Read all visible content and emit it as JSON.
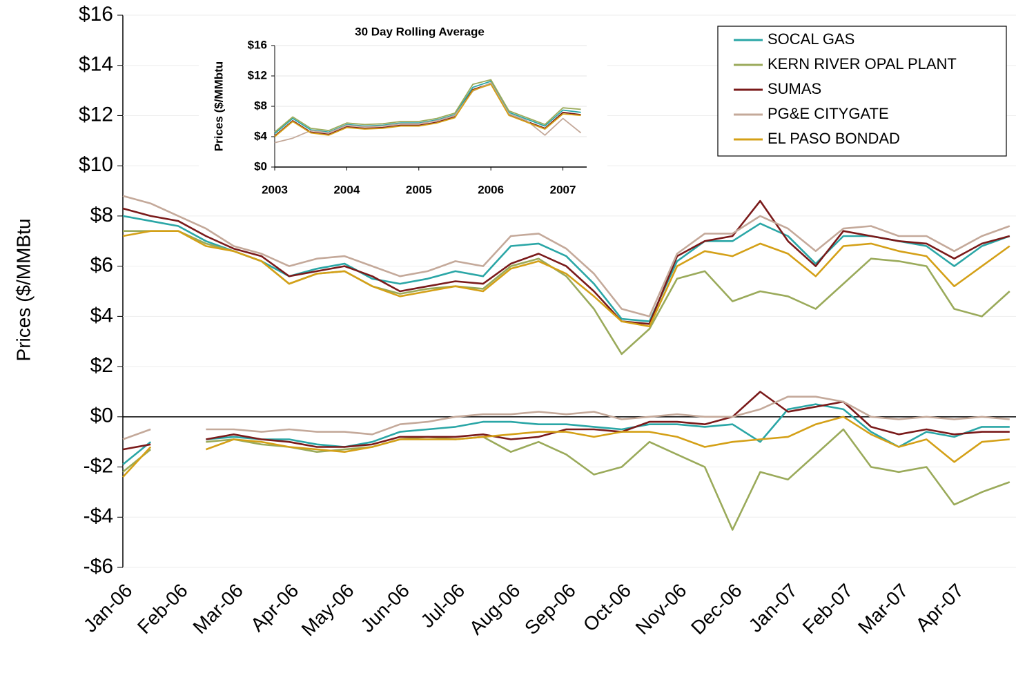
{
  "chart_data": [
    {
      "type": "line",
      "y_label": "Prices ($/MMBtu",
      "categories": [
        "Jan-06",
        null,
        "Feb-06",
        null,
        "Mar-06",
        null,
        "Apr-06",
        null,
        "May-06",
        null,
        "Jun-06",
        null,
        "Jul-06",
        null,
        "Aug-06",
        null,
        "Sep-06",
        null,
        "Oct-06",
        null,
        "Nov-06",
        null,
        "Dec-06",
        null,
        "Jan-07",
        null,
        "Feb-07",
        null,
        "Mar-07",
        null,
        "Apr-07",
        null,
        null
      ],
      "ylim": [
        -6,
        16
      ],
      "yticks": [
        {
          "value": 16,
          "label": "$16"
        },
        {
          "value": 14,
          "label": "$14"
        },
        {
          "value": 12,
          "label": "$12"
        },
        {
          "value": 10,
          "label": "$10"
        },
        {
          "value": 8,
          "label": "$8"
        },
        {
          "value": 6,
          "label": "$6"
        },
        {
          "value": 4,
          "label": "$4"
        },
        {
          "value": 2,
          "label": "$2"
        },
        {
          "value": 0,
          "label": "$0"
        },
        {
          "value": -2,
          "label": "-$2"
        },
        {
          "value": -4,
          "label": "-$4"
        },
        {
          "value": -6,
          "label": "-$6"
        }
      ],
      "grid": true,
      "legend": "upper right",
      "series": [
        {
          "name": "SOCAL GAS",
          "color": "#2aa6a6",
          "values": [
            8.0,
            7.8,
            7.6,
            7.0,
            6.6,
            6.2,
            5.6,
            5.9,
            6.1,
            5.5,
            5.3,
            5.5,
            5.8,
            5.6,
            6.8,
            6.9,
            6.4,
            5.3,
            3.9,
            3.8,
            6.2,
            7.0,
            7.0,
            7.7,
            7.2,
            6.1,
            7.2,
            7.2,
            7.0,
            6.8,
            6.0,
            6.8,
            7.2
          ],
          "basis": [
            -1.9,
            -1.0,
            null,
            -0.9,
            -0.8,
            -0.9,
            -0.9,
            -1.1,
            -1.2,
            -1.0,
            -0.6,
            -0.5,
            -0.4,
            -0.2,
            -0.2,
            -0.3,
            -0.3,
            -0.4,
            -0.5,
            -0.3,
            -0.3,
            -0.4,
            -0.3,
            -1.0,
            0.3,
            0.5,
            0.3,
            -0.6,
            -1.2,
            -0.6,
            -0.8,
            -0.4,
            -0.4
          ]
        },
        {
          "name": "KERN RIVER OPAL PLANT",
          "color": "#9aaa5a",
          "values": [
            7.4,
            7.4,
            7.4,
            6.9,
            6.6,
            6.2,
            5.3,
            5.7,
            5.8,
            5.2,
            4.9,
            5.1,
            5.2,
            5.1,
            6.0,
            6.3,
            5.6,
            4.3,
            2.5,
            3.5,
            5.5,
            5.8,
            4.6,
            5.0,
            4.8,
            4.3,
            5.3,
            6.3,
            6.2,
            6.0,
            4.3,
            4.0,
            5.0
          ],
          "basis": [
            -2.2,
            -1.3,
            null,
            -1.0,
            -0.9,
            -1.1,
            -1.2,
            -1.4,
            -1.3,
            -1.2,
            -0.9,
            -0.8,
            -0.9,
            -0.8,
            -1.4,
            -1.0,
            -1.5,
            -2.3,
            -2.0,
            -1.0,
            -1.5,
            -2.0,
            -4.5,
            -2.2,
            -2.5,
            -1.5,
            -0.5,
            -2.0,
            -2.2,
            -2.0,
            -3.5,
            -3.0,
            -2.6
          ]
        },
        {
          "name": "SUMAS",
          "color": "#7a1a1a",
          "values": [
            8.3,
            8.0,
            7.8,
            7.2,
            6.7,
            6.4,
            5.6,
            5.8,
            6.0,
            5.6,
            5.0,
            5.2,
            5.4,
            5.3,
            6.1,
            6.5,
            6.0,
            5.0,
            3.8,
            3.7,
            6.4,
            7.0,
            7.2,
            8.6,
            7.0,
            6.0,
            7.4,
            7.2,
            7.0,
            6.9,
            6.3,
            6.9,
            7.2
          ],
          "basis": [
            -1.3,
            -1.1,
            null,
            -0.9,
            -0.7,
            -0.9,
            -1.0,
            -1.2,
            -1.2,
            -1.1,
            -0.8,
            -0.8,
            -0.8,
            -0.7,
            -0.9,
            -0.8,
            -0.5,
            -0.5,
            -0.6,
            -0.2,
            -0.2,
            -0.3,
            0.0,
            1.0,
            0.2,
            0.4,
            0.6,
            -0.4,
            -0.7,
            -0.5,
            -0.7,
            -0.6,
            -0.6
          ]
        },
        {
          "name": "PG&E CITYGATE",
          "color": "#c4a99a",
          "values": [
            8.8,
            8.5,
            8.0,
            7.5,
            6.8,
            6.5,
            6.0,
            6.3,
            6.4,
            6.0,
            5.6,
            5.8,
            6.2,
            6.0,
            7.2,
            7.3,
            6.7,
            5.7,
            4.3,
            4.0,
            6.5,
            7.3,
            7.3,
            8.0,
            7.5,
            6.6,
            7.5,
            7.6,
            7.2,
            7.2,
            6.6,
            7.2,
            7.6
          ],
          "basis": [
            -0.9,
            -0.5,
            null,
            -0.5,
            -0.5,
            -0.6,
            -0.5,
            -0.6,
            -0.6,
            -0.7,
            -0.3,
            -0.2,
            0.0,
            0.1,
            0.1,
            0.2,
            0.1,
            0.2,
            -0.1,
            0.0,
            0.1,
            0.0,
            0.0,
            0.3,
            0.8,
            0.8,
            0.6,
            0.0,
            -0.1,
            0.0,
            -0.1,
            0.0,
            -0.1
          ]
        },
        {
          "name": "EL PASO BONDAD",
          "color": "#d4a017",
          "values": [
            7.2,
            7.4,
            7.4,
            6.8,
            6.6,
            6.2,
            5.3,
            5.7,
            5.8,
            5.2,
            4.8,
            5.0,
            5.2,
            5.0,
            5.9,
            6.2,
            5.7,
            4.8,
            3.8,
            3.6,
            6.0,
            6.6,
            6.4,
            6.9,
            6.5,
            5.6,
            6.8,
            6.9,
            6.6,
            6.4,
            5.2,
            6.0,
            6.8
          ],
          "basis": [
            -2.4,
            -1.2,
            null,
            -1.3,
            -0.9,
            -1.0,
            -1.2,
            -1.3,
            -1.4,
            -1.2,
            -0.9,
            -0.9,
            -0.9,
            -0.8,
            -0.7,
            -0.6,
            -0.6,
            -0.8,
            -0.6,
            -0.6,
            -0.8,
            -1.2,
            -1.0,
            -0.9,
            -0.8,
            -0.3,
            0.0,
            -0.7,
            -1.2,
            -0.9,
            -1.8,
            -1.0,
            -0.9
          ]
        }
      ]
    },
    {
      "type": "line",
      "title": "30 Day Rolling Average",
      "y_label": "Prices ($/MMbtu",
      "x": [
        2003.0,
        2003.25,
        2003.5,
        2003.75,
        2004.0,
        2004.25,
        2004.5,
        2004.75,
        2005.0,
        2005.25,
        2005.5,
        2005.75,
        2006.0,
        2006.25,
        2006.5,
        2006.75,
        2007.0,
        2007.25
      ],
      "xlim": [
        2003,
        2007.33
      ],
      "xticks": [
        2003,
        2004,
        2005,
        2006,
        2007
      ],
      "ylim": [
        0,
        16
      ],
      "yticks": [
        {
          "value": 16,
          "label": "$16"
        },
        {
          "value": 12,
          "label": "$12"
        },
        {
          "value": 8,
          "label": "$8"
        },
        {
          "value": 4,
          "label": "$4"
        },
        {
          "value": 0,
          "label": "$0"
        }
      ],
      "grid": true,
      "series": [
        {
          "color": "#2aa6a6",
          "values": [
            4.4,
            6.4,
            4.9,
            4.6,
            5.6,
            5.4,
            5.5,
            5.8,
            5.8,
            6.2,
            6.9,
            10.5,
            11.3,
            7.2,
            6.3,
            5.4,
            7.5,
            7.2
          ]
        },
        {
          "color": "#9aaa5a",
          "values": [
            4.6,
            6.6,
            5.1,
            4.8,
            5.8,
            5.6,
            5.7,
            6.0,
            6.0,
            6.4,
            7.1,
            10.9,
            11.5,
            7.4,
            6.5,
            5.6,
            7.8,
            7.6
          ]
        },
        {
          "color": "#7a1a1a",
          "values": [
            4.1,
            6.1,
            4.6,
            4.3,
            5.3,
            5.1,
            5.2,
            5.5,
            5.5,
            5.9,
            6.6,
            10.2,
            11.0,
            6.9,
            6.0,
            5.1,
            7.2,
            6.9
          ]
        },
        {
          "color": "#c4a99a",
          "values": [
            3.2,
            3.8,
            4.8,
            4.5,
            5.5,
            5.3,
            5.4,
            5.7,
            5.7,
            6.1,
            6.8,
            10.0,
            11.1,
            7.0,
            6.1,
            4.2,
            6.4,
            4.5
          ]
        },
        {
          "color": "#d4a017",
          "values": [
            4.0,
            6.0,
            4.5,
            4.2,
            5.2,
            5.0,
            5.1,
            5.4,
            5.4,
            5.8,
            6.5,
            10.1,
            10.9,
            6.8,
            5.9,
            5.0,
            7.0,
            6.8
          ]
        }
      ]
    }
  ]
}
